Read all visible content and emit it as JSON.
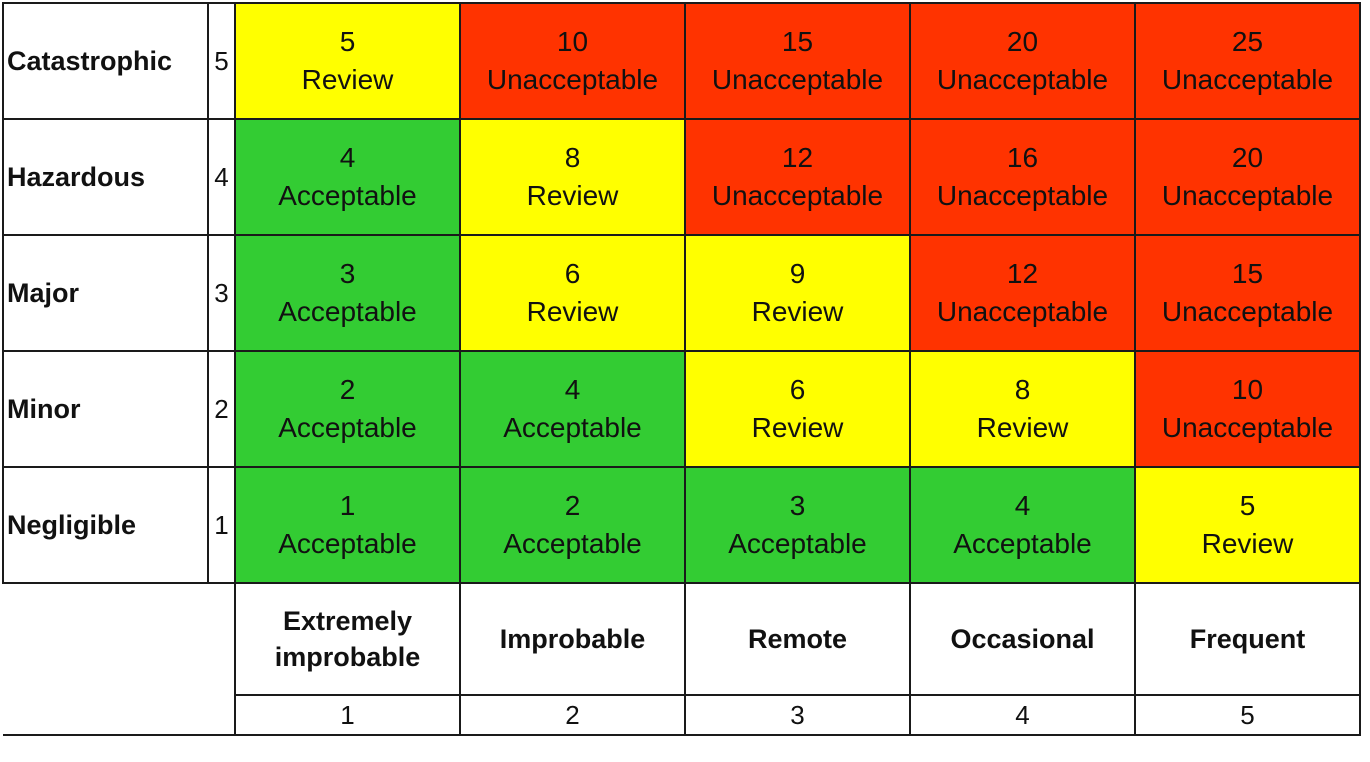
{
  "chart_data": {
    "type": "heatmap",
    "colors": {
      "Acceptable": "#33cc33",
      "Review": "#ffff00",
      "Unacceptable": "#ff3300"
    },
    "severity": [
      {
        "label": "Catastrophic",
        "num": "5"
      },
      {
        "label": "Hazardous",
        "num": "4"
      },
      {
        "label": "Major",
        "num": "3"
      },
      {
        "label": "Minor",
        "num": "2"
      },
      {
        "label": "Negligible",
        "num": "1"
      }
    ],
    "likelihood": [
      {
        "label": "Extremely improbable",
        "num": "1"
      },
      {
        "label": "Improbable",
        "num": "2"
      },
      {
        "label": "Remote",
        "num": "3"
      },
      {
        "label": "Occasional",
        "num": "4"
      },
      {
        "label": "Frequent",
        "num": "5"
      }
    ],
    "cells": [
      [
        {
          "value": "5",
          "rating": "Review"
        },
        {
          "value": "10",
          "rating": "Unacceptable"
        },
        {
          "value": "15",
          "rating": "Unacceptable"
        },
        {
          "value": "20",
          "rating": "Unacceptable"
        },
        {
          "value": "25",
          "rating": "Unacceptable"
        }
      ],
      [
        {
          "value": "4",
          "rating": "Acceptable"
        },
        {
          "value": "8",
          "rating": "Review"
        },
        {
          "value": "12",
          "rating": "Unacceptable"
        },
        {
          "value": "16",
          "rating": "Unacceptable"
        },
        {
          "value": "20",
          "rating": "Unacceptable"
        }
      ],
      [
        {
          "value": "3",
          "rating": "Acceptable"
        },
        {
          "value": "6",
          "rating": "Review"
        },
        {
          "value": "9",
          "rating": "Review"
        },
        {
          "value": "12",
          "rating": "Unacceptable"
        },
        {
          "value": "15",
          "rating": "Unacceptable"
        }
      ],
      [
        {
          "value": "2",
          "rating": "Acceptable"
        },
        {
          "value": "4",
          "rating": "Acceptable"
        },
        {
          "value": "6",
          "rating": "Review"
        },
        {
          "value": "8",
          "rating": "Review"
        },
        {
          "value": "10",
          "rating": "Unacceptable"
        }
      ],
      [
        {
          "value": "1",
          "rating": "Acceptable"
        },
        {
          "value": "2",
          "rating": "Acceptable"
        },
        {
          "value": "3",
          "rating": "Acceptable"
        },
        {
          "value": "4",
          "rating": "Acceptable"
        },
        {
          "value": "5",
          "rating": "Review"
        }
      ]
    ]
  }
}
